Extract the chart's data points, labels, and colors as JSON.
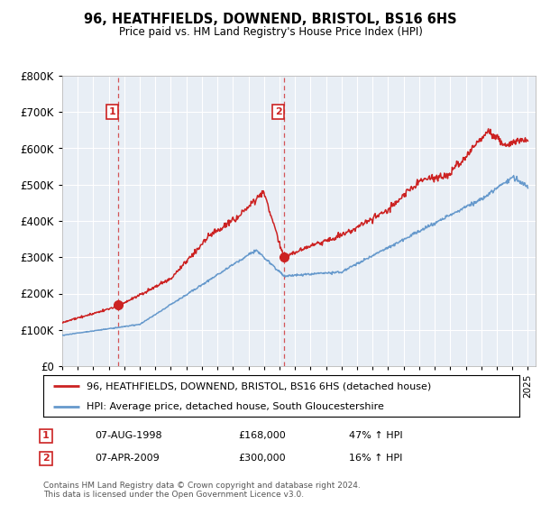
{
  "title": "96, HEATHFIELDS, DOWNEND, BRISTOL, BS16 6HS",
  "subtitle": "Price paid vs. HM Land Registry's House Price Index (HPI)",
  "ylim": [
    0,
    800000
  ],
  "yticks": [
    0,
    100000,
    200000,
    300000,
    400000,
    500000,
    600000,
    700000,
    800000
  ],
  "plot_bg_color": "#e8eef5",
  "red_color": "#cc2222",
  "blue_color": "#6699cc",
  "transaction1_date": 1998.59,
  "transaction1_price": 168000,
  "transaction2_date": 2009.27,
  "transaction2_price": 300000,
  "legend_label_red": "96, HEATHFIELDS, DOWNEND, BRISTOL, BS16 6HS (detached house)",
  "legend_label_blue": "HPI: Average price, detached house, South Gloucestershire",
  "footer": "Contains HM Land Registry data © Crown copyright and database right 2024.\nThis data is licensed under the Open Government Licence v3.0.",
  "table_row1": [
    "1",
    "07-AUG-1998",
    "£168,000",
    "47% ↑ HPI"
  ],
  "table_row2": [
    "2",
    "07-APR-2009",
    "£300,000",
    "16% ↑ HPI"
  ]
}
